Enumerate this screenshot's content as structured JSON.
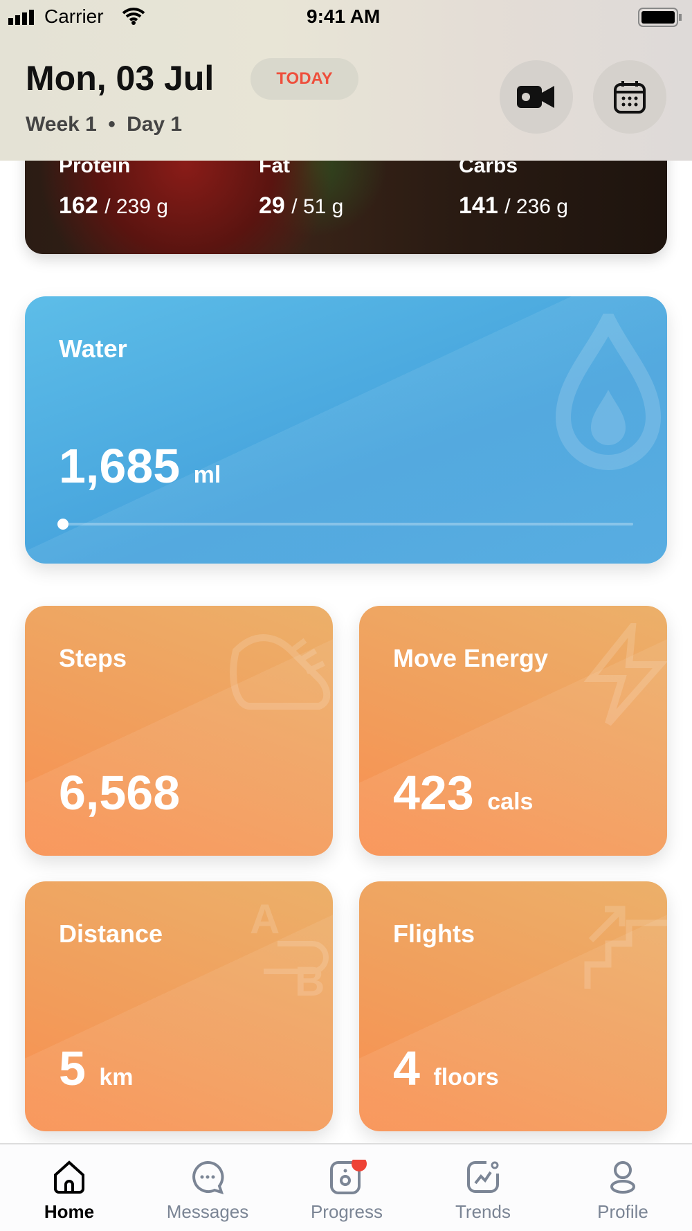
{
  "status": {
    "carrier": "Carrier",
    "time": "9:41 AM"
  },
  "header": {
    "date": "Mon, 03 Jul",
    "today_label": "TODAY",
    "week": "Week 1",
    "day": "Day 1",
    "separator": "•"
  },
  "macros": [
    {
      "label": "Protein",
      "value": "162",
      "target": "/ 239 g"
    },
    {
      "label": "Fat",
      "value": "29",
      "target": "/ 51 g"
    },
    {
      "label": "Carbs",
      "value": "141",
      "target": "/ 236 g"
    }
  ],
  "water": {
    "title": "Water",
    "value": "1,685",
    "unit": "ml",
    "progress_percent": 0,
    "color": "#4aa6df"
  },
  "tiles": [
    {
      "title": "Steps",
      "value": "6,568",
      "unit": "",
      "icon": "shoe-icon"
    },
    {
      "title": "Move Energy",
      "value": "423",
      "unit": "cals",
      "icon": "lightning-icon"
    },
    {
      "title": "Distance",
      "value": "5",
      "unit": "km",
      "icon": "route-a-b-icon"
    },
    {
      "title": "Flights",
      "value": "4",
      "unit": "floors",
      "icon": "stairs-icon"
    }
  ],
  "tabs": [
    {
      "label": "Home",
      "active": true
    },
    {
      "label": "Messages"
    },
    {
      "label": "Progress",
      "badge": true
    },
    {
      "label": "Trends"
    },
    {
      "label": "Profile"
    }
  ],
  "colors": {
    "accent_orange": "#f19e5c",
    "today_red": "#ee4f3c",
    "badge": "#ee4336"
  }
}
